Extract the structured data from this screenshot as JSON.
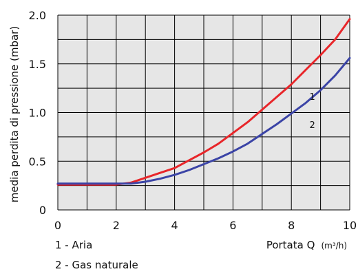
{
  "chart_data": {
    "type": "line",
    "title": "",
    "xlabel": "Portata Q",
    "xlabel_unit": "(m³/h)",
    "ylabel": "media perdita di pressione (mbar)",
    "xlim": [
      0,
      10
    ],
    "ylim": [
      0,
      2.0
    ],
    "x_ticks": [
      "0",
      "2",
      "4",
      "6",
      "8",
      "10"
    ],
    "y_ticks": [
      "0",
      "0.5",
      "1.0",
      "1.5",
      "2.0"
    ],
    "grid": true,
    "background_color": "#e6e6e6",
    "grid_color": "#000000",
    "series": [
      {
        "name": "1",
        "color": "#e8262a",
        "x": [
          0,
          0.5,
          1,
          1.5,
          2,
          2.5,
          3,
          3.5,
          4,
          4.5,
          5,
          5.5,
          6,
          6.5,
          7,
          7.5,
          8,
          8.5,
          9,
          9.5,
          10
        ],
        "y": [
          0.26,
          0.26,
          0.26,
          0.26,
          0.26,
          0.28,
          0.33,
          0.38,
          0.43,
          0.51,
          0.59,
          0.68,
          0.79,
          0.9,
          1.03,
          1.16,
          1.29,
          1.44,
          1.59,
          1.75,
          1.96
        ]
      },
      {
        "name": "2",
        "color": "#3b44a6",
        "x": [
          0,
          0.5,
          1,
          1.5,
          2,
          2.5,
          3,
          3.5,
          4,
          4.5,
          5,
          5.5,
          6,
          6.5,
          7,
          7.5,
          8,
          8.5,
          9,
          9.5,
          10
        ],
        "y": [
          0.27,
          0.27,
          0.27,
          0.27,
          0.27,
          0.27,
          0.29,
          0.32,
          0.36,
          0.41,
          0.47,
          0.53,
          0.6,
          0.68,
          0.78,
          0.88,
          0.99,
          1.1,
          1.23,
          1.38,
          1.56
        ]
      }
    ],
    "series_labels": [
      {
        "text": "1",
        "x": 8.1,
        "y": 1.13
      },
      {
        "text": "2",
        "x": 8.1,
        "y": 0.84
      }
    ],
    "legend": {
      "placement": "bottom-left",
      "entries": [
        "1 - Aria",
        "2 - Gas naturale"
      ]
    }
  }
}
